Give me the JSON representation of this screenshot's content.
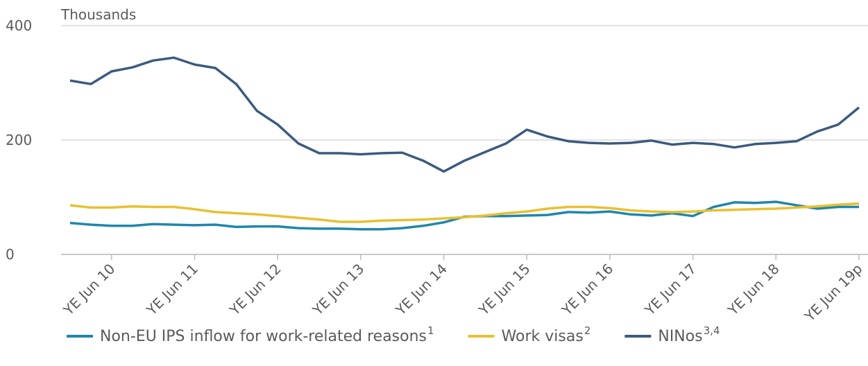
{
  "chart_data": {
    "type": "line",
    "y_label": "Thousands",
    "categories": [
      null,
      null,
      "YE Jun 10",
      null,
      null,
      null,
      "YE Jun 11",
      null,
      null,
      null,
      "YE Jun 12",
      null,
      null,
      null,
      "YE Jun 13",
      null,
      null,
      null,
      "YE Jun 14",
      null,
      null,
      null,
      "YE Jun 15",
      null,
      null,
      null,
      "YE Jun 16",
      null,
      null,
      null,
      "YE Jun 17",
      null,
      null,
      null,
      "YE Jun 18",
      null,
      null,
      null,
      "YE Jun 19p"
    ],
    "series": [
      {
        "name": "Non-EU IPS inflow for work-related reasons",
        "footnote": "1",
        "color": "#1f86ad",
        "values": [
          55,
          52,
          50,
          50,
          53,
          52,
          51,
          52,
          48,
          49,
          49,
          46,
          45,
          45,
          44,
          44,
          46,
          50,
          56,
          66,
          67,
          67,
          68,
          69,
          74,
          73,
          75,
          70,
          68,
          72,
          67,
          83,
          91,
          90,
          92,
          86,
          80,
          83,
          83
        ]
      },
      {
        "name": "Work visas",
        "footnote": "2",
        "color": "#e8c031",
        "values": [
          86,
          82,
          82,
          84,
          83,
          83,
          79,
          74,
          72,
          70,
          67,
          64,
          61,
          57,
          57,
          59,
          60,
          61,
          63,
          65,
          68,
          72,
          75,
          80,
          83,
          83,
          81,
          77,
          75,
          74,
          75,
          77,
          78,
          79,
          80,
          82,
          84,
          87,
          89
        ]
      },
      {
        "name": "NINos",
        "footnote": "3,4",
        "color": "#3b5a7e",
        "values": [
          304,
          298,
          320,
          327,
          339,
          344,
          332,
          326,
          298,
          251,
          227,
          194,
          177,
          177,
          175,
          177,
          178,
          164,
          145,
          164,
          179,
          194,
          218,
          206,
          198,
          195,
          194,
          195,
          199,
          192,
          195,
          193,
          187,
          193,
          195,
          198,
          215,
          227,
          257
        ]
      }
    ],
    "ylim": [
      0,
      400
    ],
    "yticks": [
      0,
      200,
      400
    ],
    "grid": true
  }
}
